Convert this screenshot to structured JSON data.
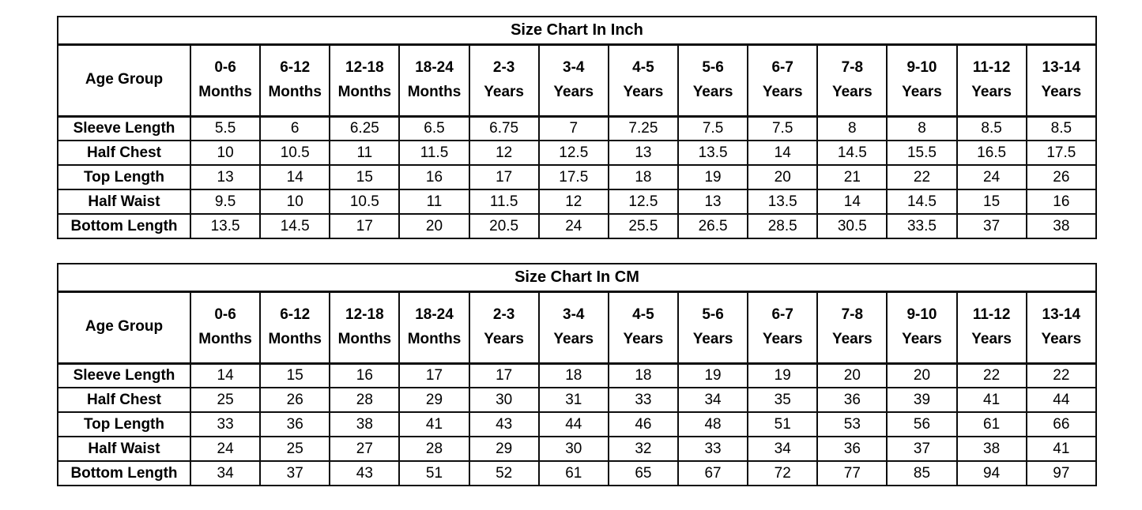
{
  "tables": [
    {
      "title": "Size Chart In Inch",
      "age_group_label": "Age Group",
      "columns": [
        {
          "line1": "0-6",
          "line2": "Months"
        },
        {
          "line1": "6-12",
          "line2": "Months"
        },
        {
          "line1": "12-18",
          "line2": "Months"
        },
        {
          "line1": "18-24",
          "line2": "Months"
        },
        {
          "line1": "2-3",
          "line2": "Years"
        },
        {
          "line1": "3-4",
          "line2": "Years"
        },
        {
          "line1": "4-5",
          "line2": "Years"
        },
        {
          "line1": "5-6",
          "line2": "Years"
        },
        {
          "line1": "6-7",
          "line2": "Years"
        },
        {
          "line1": "7-8",
          "line2": "Years"
        },
        {
          "line1": "9-10",
          "line2": "Years"
        },
        {
          "line1": "11-12",
          "line2": "Years"
        },
        {
          "line1": "13-14",
          "line2": "Years"
        }
      ],
      "rows": [
        {
          "label": "Sleeve Length",
          "values": [
            5.5,
            6,
            6.25,
            6.5,
            6.75,
            7,
            7.25,
            7.5,
            7.5,
            8,
            8,
            8.5,
            8.5
          ]
        },
        {
          "label": "Half Chest",
          "values": [
            10,
            10.5,
            11,
            11.5,
            12,
            12.5,
            13,
            13.5,
            14,
            14.5,
            15.5,
            16.5,
            17.5
          ]
        },
        {
          "label": "Top Length",
          "values": [
            13,
            14,
            15,
            16,
            17,
            17.5,
            18,
            19,
            20,
            21,
            22,
            24,
            26
          ]
        },
        {
          "label": "Half Waist",
          "values": [
            9.5,
            10,
            10.5,
            11,
            11.5,
            12,
            12.5,
            13,
            13.5,
            14,
            14.5,
            15,
            16
          ]
        },
        {
          "label": "Bottom Length",
          "values": [
            13.5,
            14.5,
            17,
            20,
            20.5,
            24,
            25.5,
            26.5,
            28.5,
            30.5,
            33.5,
            37,
            38
          ]
        }
      ]
    },
    {
      "title": "Size Chart In CM",
      "age_group_label": "Age Group",
      "columns": [
        {
          "line1": "0-6",
          "line2": "Months"
        },
        {
          "line1": "6-12",
          "line2": "Months"
        },
        {
          "line1": "12-18",
          "line2": "Months"
        },
        {
          "line1": "18-24",
          "line2": "Months"
        },
        {
          "line1": "2-3",
          "line2": "Years"
        },
        {
          "line1": "3-4",
          "line2": "Years"
        },
        {
          "line1": "4-5",
          "line2": "Years"
        },
        {
          "line1": "5-6",
          "line2": "Years"
        },
        {
          "line1": "6-7",
          "line2": "Years"
        },
        {
          "line1": "7-8",
          "line2": "Years"
        },
        {
          "line1": "9-10",
          "line2": "Years"
        },
        {
          "line1": "11-12",
          "line2": "Years"
        },
        {
          "line1": "13-14",
          "line2": "Years"
        }
      ],
      "rows": [
        {
          "label": "Sleeve Length",
          "values": [
            14,
            15,
            16,
            17,
            17,
            18,
            18,
            19,
            19,
            20,
            20,
            22,
            22
          ]
        },
        {
          "label": "Half Chest",
          "values": [
            25,
            26,
            28,
            29,
            30,
            31,
            33,
            34,
            35,
            36,
            39,
            41,
            44
          ]
        },
        {
          "label": "Top Length",
          "values": [
            33,
            36,
            38,
            41,
            43,
            44,
            46,
            48,
            51,
            53,
            56,
            61,
            66
          ]
        },
        {
          "label": "Half Waist",
          "values": [
            24,
            25,
            27,
            28,
            29,
            30,
            32,
            33,
            34,
            36,
            37,
            38,
            41
          ]
        },
        {
          "label": "Bottom Length",
          "values": [
            34,
            37,
            43,
            51,
            52,
            61,
            65,
            67,
            72,
            77,
            85,
            94,
            97
          ]
        }
      ]
    }
  ]
}
